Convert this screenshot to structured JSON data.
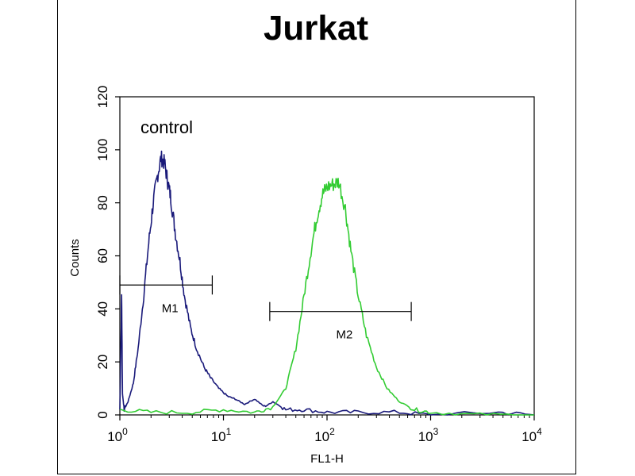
{
  "chart_data": {
    "type": "line",
    "title": "Jurkat",
    "xlabel": "FL1-H",
    "ylabel": "Counts",
    "x_scale": "log",
    "xlim": [
      1,
      10000
    ],
    "ylim": [
      0,
      120
    ],
    "x_ticks": [
      {
        "base": "10",
        "exp": "0",
        "value": 1
      },
      {
        "base": "10",
        "exp": "1",
        "value": 10
      },
      {
        "base": "10",
        "exp": "2",
        "value": 100
      },
      {
        "base": "10",
        "exp": "3",
        "value": 1000
      },
      {
        "base": "10",
        "exp": "4",
        "value": 10000
      }
    ],
    "y_ticks": [
      "0",
      "20",
      "40",
      "60",
      "80",
      "100",
      "120"
    ],
    "annotation": "control",
    "series": [
      {
        "color": "#1a1a7a",
        "points": [
          [
            1.0,
            2
          ],
          [
            1.04,
            45
          ],
          [
            1.06,
            8
          ],
          [
            1.1,
            2
          ],
          [
            1.2,
            5
          ],
          [
            1.35,
            12
          ],
          [
            1.5,
            25
          ],
          [
            1.7,
            45
          ],
          [
            1.9,
            65
          ],
          [
            2.1,
            80
          ],
          [
            2.3,
            90
          ],
          [
            2.5,
            97
          ],
          [
            2.7,
            95
          ],
          [
            2.9,
            88
          ],
          [
            3.1,
            82
          ],
          [
            3.4,
            70
          ],
          [
            3.8,
            58
          ],
          [
            4.2,
            45
          ],
          [
            4.8,
            33
          ],
          [
            5.5,
            25
          ],
          [
            6.5,
            18
          ],
          [
            7.5,
            14
          ],
          [
            9,
            10
          ],
          [
            11,
            7
          ],
          [
            13,
            6
          ],
          [
            16,
            4
          ],
          [
            20,
            6
          ],
          [
            25,
            3
          ],
          [
            30,
            5
          ],
          [
            40,
            2
          ],
          [
            60,
            2
          ],
          [
            100,
            1
          ],
          [
            200,
            1
          ],
          [
            500,
            1
          ],
          [
            1000,
            0
          ],
          [
            4500,
            1
          ],
          [
            10000,
            0
          ]
        ]
      },
      {
        "color": "#33cc33",
        "points": [
          [
            1.0,
            2
          ],
          [
            2,
            1
          ],
          [
            5,
            1
          ],
          [
            10,
            2
          ],
          [
            20,
            1
          ],
          [
            30,
            3
          ],
          [
            40,
            10
          ],
          [
            50,
            25
          ],
          [
            60,
            45
          ],
          [
            70,
            62
          ],
          [
            80,
            75
          ],
          [
            90,
            83
          ],
          [
            100,
            86
          ],
          [
            115,
            87
          ],
          [
            130,
            88
          ],
          [
            150,
            78
          ],
          [
            170,
            62
          ],
          [
            200,
            45
          ],
          [
            240,
            30
          ],
          [
            300,
            18
          ],
          [
            380,
            10
          ],
          [
            500,
            5
          ],
          [
            700,
            2
          ],
          [
            1000,
            1
          ],
          [
            3000,
            0
          ],
          [
            10000,
            0
          ]
        ]
      }
    ],
    "markers": [
      {
        "label": "M1",
        "x_start": 1.0,
        "x_end": 7.8,
        "y": 49
      },
      {
        "label": "M2",
        "x_start": 28,
        "x_end": 650,
        "y": 39
      }
    ]
  }
}
